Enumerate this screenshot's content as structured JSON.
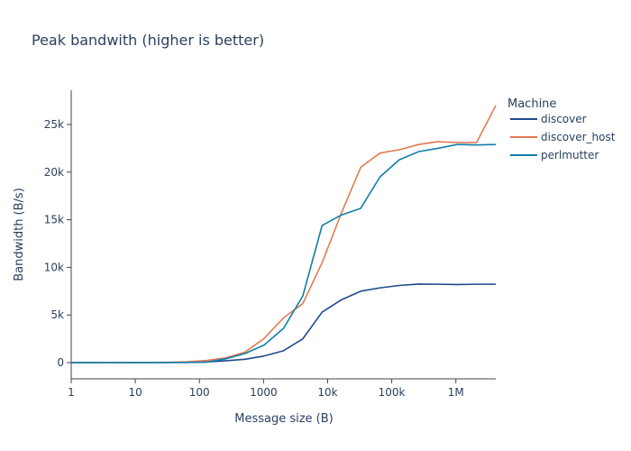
{
  "chart_data": {
    "type": "line",
    "title": "Peak bandwith (higher is better)",
    "xlabel": "Message size (B)",
    "ylabel": "Bandwidth (B/s)",
    "x_scale": "log",
    "xlim": [
      1,
      4194304
    ],
    "ylim": [
      -1700,
      28600
    ],
    "x_ticks": [
      {
        "value": 1,
        "label": "1"
      },
      {
        "value": 10,
        "label": "10"
      },
      {
        "value": 100,
        "label": "100"
      },
      {
        "value": 1000,
        "label": "1000"
      },
      {
        "value": 10000,
        "label": "10k"
      },
      {
        "value": 100000,
        "label": "100k"
      },
      {
        "value": 1000000,
        "label": "1M"
      }
    ],
    "y_ticks": [
      {
        "value": 0,
        "label": "0"
      },
      {
        "value": 5000,
        "label": "5k"
      },
      {
        "value": 10000,
        "label": "10k"
      },
      {
        "value": 15000,
        "label": "15k"
      },
      {
        "value": 20000,
        "label": "20k"
      },
      {
        "value": 25000,
        "label": "25k"
      }
    ],
    "grid": false,
    "legend": {
      "title": "Machine",
      "position": "right"
    },
    "x": [
      1,
      2,
      4,
      8,
      16,
      32,
      64,
      128,
      256,
      512,
      1024,
      2048,
      4096,
      8192,
      16384,
      32768,
      65536,
      131072,
      262144,
      524288,
      1048576,
      2097152,
      4194304
    ],
    "series": [
      {
        "name": "discover",
        "color": "#1f4a8c",
        "values": [
          0,
          0,
          5,
          8,
          12,
          18,
          30,
          70,
          200,
          350,
          700,
          1250,
          2500,
          5300,
          6600,
          7500,
          7850,
          8100,
          8250,
          8230,
          8200,
          8230,
          8230
        ]
      },
      {
        "name": "discover_host",
        "color": "#e07b54",
        "values": [
          0,
          2,
          5,
          10,
          20,
          40,
          100,
          220,
          500,
          1100,
          2550,
          4700,
          6200,
          10500,
          15700,
          20500,
          22000,
          22350,
          22900,
          23200,
          23100,
          23100,
          27000
        ]
      },
      {
        "name": "perlmutter",
        "color": "#117ea8",
        "values": [
          0,
          1,
          3,
          6,
          10,
          15,
          25,
          50,
          400,
          950,
          1850,
          3600,
          7000,
          14400,
          15500,
          16200,
          19500,
          21300,
          22150,
          22500,
          22900,
          22850,
          22900
        ]
      }
    ]
  }
}
